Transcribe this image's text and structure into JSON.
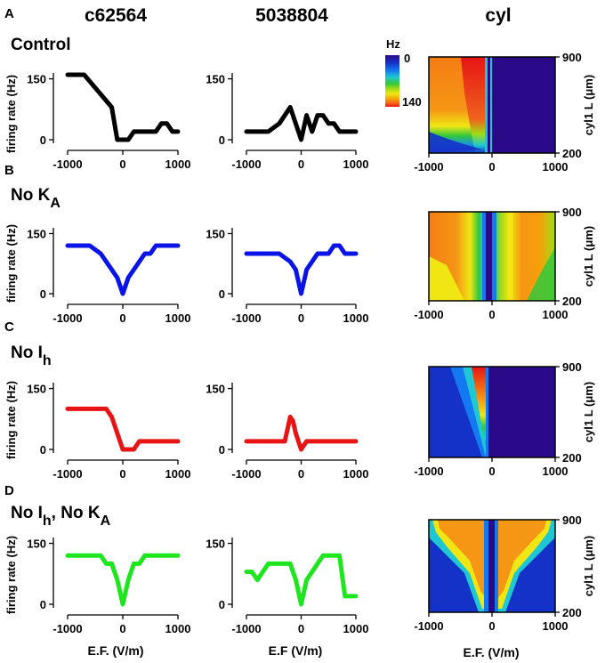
{
  "figure": {
    "columns": [
      "c62564",
      "5038804",
      "cyl"
    ],
    "panel_letters": [
      "A",
      "B",
      "C",
      "D"
    ],
    "conditions": [
      {
        "letter": "A",
        "label": "Control",
        "main": "Control",
        "sub": ""
      },
      {
        "letter": "B",
        "label": "No KA",
        "main": "No K",
        "sub": "A"
      },
      {
        "letter": "C",
        "label": "No Ih",
        "main": "No I",
        "sub": "h"
      },
      {
        "letter": "D",
        "label": "No Ih, No KA",
        "main": "No I",
        "sub": "h",
        "main2": ", No K",
        "sub2": "A"
      }
    ],
    "ylabel": "firing rate (Hz)",
    "xlabel_left": "E.F. (V/m)",
    "xlabel_mid": "E.F (V/m)",
    "xlabel_right": "E.F. (V/m)",
    "heatmap_ylabel": "cyl1 L (μm)",
    "colorbar": {
      "title": "Hz",
      "min_label": "0",
      "max_label": "140",
      "colors": [
        "#2b0a8a",
        "#1432c8",
        "#1478f0",
        "#1ec8d2",
        "#32c83c",
        "#a0dc14",
        "#f0e614",
        "#f5a00a",
        "#f56414",
        "#e61414"
      ]
    },
    "line_colors": [
      "#000000",
      "#0a14e6",
      "#e61414",
      "#1ee61e"
    ]
  },
  "chart_data": [
    {
      "type": "line",
      "panel": "A",
      "column": "c62564",
      "color": "#000000",
      "x": [
        -1000,
        -700,
        -200,
        -100,
        0,
        100,
        200,
        300,
        400,
        500,
        600,
        700,
        800,
        900,
        1000
      ],
      "y": [
        160,
        160,
        80,
        0,
        0,
        0,
        20,
        20,
        20,
        20,
        20,
        40,
        40,
        20,
        20
      ],
      "xlim": [
        -1000,
        1000
      ],
      "ylim": [
        0,
        160
      ],
      "xticks": [
        -1000,
        0,
        1000
      ],
      "yticks": [
        0,
        150
      ]
    },
    {
      "type": "line",
      "panel": "A",
      "column": "5038804",
      "color": "#000000",
      "x": [
        -1000,
        -800,
        -600,
        -400,
        -200,
        -100,
        0,
        100,
        200,
        300,
        400,
        500,
        600,
        700,
        800,
        900,
        1000
      ],
      "y": [
        20,
        20,
        20,
        40,
        80,
        40,
        0,
        60,
        20,
        60,
        60,
        40,
        40,
        20,
        20,
        20,
        20
      ],
      "xlim": [
        -1000,
        1000
      ],
      "ylim": [
        0,
        160
      ],
      "xticks": [
        -1000,
        0,
        1000
      ],
      "yticks": [
        0,
        150
      ]
    },
    {
      "type": "line",
      "panel": "B",
      "column": "c62564",
      "color": "#0a14e6",
      "x": [
        -1000,
        -600,
        -400,
        -200,
        -100,
        0,
        100,
        200,
        300,
        400,
        500,
        600,
        700,
        800,
        900,
        1000
      ],
      "y": [
        120,
        120,
        100,
        60,
        40,
        0,
        40,
        60,
        80,
        100,
        100,
        120,
        120,
        120,
        120,
        120
      ],
      "xlim": [
        -1000,
        1000
      ],
      "ylim": [
        0,
        160
      ],
      "xticks": [
        -1000,
        0,
        1000
      ],
      "yticks": [
        0,
        150
      ]
    },
    {
      "type": "line",
      "panel": "B",
      "column": "5038804",
      "color": "#0a14e6",
      "x": [
        -1000,
        -800,
        -400,
        -200,
        -100,
        0,
        100,
        200,
        300,
        400,
        500,
        600,
        700,
        800,
        900,
        1000
      ],
      "y": [
        100,
        100,
        100,
        80,
        60,
        0,
        60,
        80,
        100,
        100,
        100,
        120,
        120,
        100,
        100,
        100
      ],
      "xlim": [
        -1000,
        1000
      ],
      "ylim": [
        0,
        160
      ],
      "xticks": [
        -1000,
        0,
        1000
      ],
      "yticks": [
        0,
        150
      ]
    },
    {
      "type": "line",
      "panel": "C",
      "column": "c62564",
      "color": "#e61414",
      "x": [
        -1000,
        -700,
        -300,
        -200,
        -100,
        0,
        100,
        200,
        300,
        400,
        500,
        600,
        700,
        800,
        900,
        1000
      ],
      "y": [
        100,
        100,
        100,
        80,
        40,
        0,
        0,
        0,
        20,
        20,
        20,
        20,
        20,
        20,
        20,
        20
      ],
      "xlim": [
        -1000,
        1000
      ],
      "ylim": [
        0,
        160
      ],
      "xticks": [
        -1000,
        0,
        1000
      ],
      "yticks": [
        0,
        150
      ]
    },
    {
      "type": "line",
      "panel": "C",
      "column": "5038804",
      "color": "#e61414",
      "x": [
        -1000,
        -800,
        -600,
        -400,
        -300,
        -200,
        -150,
        -100,
        0,
        100,
        200,
        300,
        400,
        600,
        800,
        1000
      ],
      "y": [
        20,
        20,
        20,
        20,
        20,
        80,
        70,
        40,
        0,
        20,
        20,
        20,
        20,
        20,
        20,
        20
      ],
      "xlim": [
        -1000,
        1000
      ],
      "ylim": [
        0,
        160
      ],
      "xticks": [
        -1000,
        0,
        1000
      ],
      "yticks": [
        0,
        150
      ]
    },
    {
      "type": "line",
      "panel": "D",
      "column": "c62564",
      "color": "#1ee61e",
      "x": [
        -1000,
        -600,
        -400,
        -300,
        -200,
        -100,
        0,
        100,
        200,
        300,
        400,
        500,
        600,
        800,
        1000
      ],
      "y": [
        120,
        120,
        120,
        100,
        100,
        60,
        0,
        60,
        100,
        100,
        120,
        120,
        120,
        120,
        120
      ],
      "xlim": [
        -1000,
        1000
      ],
      "ylim": [
        0,
        160
      ],
      "xticks": [
        -1000,
        0,
        1000
      ],
      "yticks": [
        0,
        150
      ]
    },
    {
      "type": "line",
      "panel": "D",
      "column": "5038804",
      "color": "#1ee61e",
      "x": [
        -1000,
        -900,
        -800,
        -700,
        -600,
        -400,
        -200,
        -100,
        0,
        100,
        200,
        300,
        400,
        600,
        700,
        800,
        900,
        1000
      ],
      "y": [
        80,
        80,
        60,
        80,
        100,
        100,
        100,
        60,
        0,
        60,
        80,
        100,
        120,
        120,
        120,
        20,
        20,
        20
      ],
      "xlim": [
        -1000,
        1000
      ],
      "ylim": [
        0,
        160
      ],
      "xticks": [
        -1000,
        0,
        1000
      ],
      "yticks": [
        0,
        150
      ]
    },
    {
      "type": "heatmap",
      "panel": "A",
      "column": "cyl",
      "xlim": [
        -1000,
        1000
      ],
      "ylim": [
        200,
        900
      ],
      "xticks": [
        -1000,
        0,
        1000
      ],
      "yticks": [
        200,
        900
      ],
      "zlim": [
        0,
        140
      ]
    },
    {
      "type": "heatmap",
      "panel": "B",
      "column": "cyl",
      "xlim": [
        -1000,
        1000
      ],
      "ylim": [
        200,
        900
      ],
      "xticks": [
        -1000,
        0,
        1000
      ],
      "yticks": [
        200,
        900
      ],
      "zlim": [
        0,
        140
      ]
    },
    {
      "type": "heatmap",
      "panel": "C",
      "column": "cyl",
      "xlim": [
        -1000,
        1000
      ],
      "ylim": [
        200,
        900
      ],
      "xticks": [
        -1000,
        0,
        1000
      ],
      "yticks": [
        200,
        900
      ],
      "zlim": [
        0,
        140
      ]
    },
    {
      "type": "heatmap",
      "panel": "D",
      "column": "cyl",
      "xlim": [
        -1000,
        1000
      ],
      "ylim": [
        200,
        900
      ],
      "xticks": [
        -1000,
        0,
        1000
      ],
      "yticks": [
        200,
        900
      ],
      "zlim": [
        0,
        140
      ]
    }
  ]
}
